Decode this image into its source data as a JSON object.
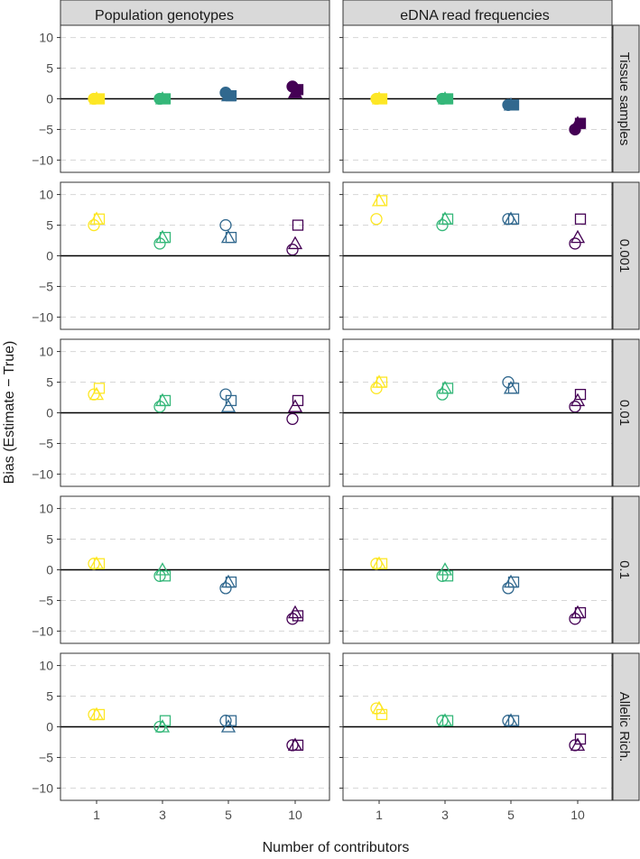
{
  "chart_data": {
    "type": "scatter",
    "xlabel": "Number of contributors",
    "ylabel": "Bias (Estimate − True)",
    "x_categories": [
      "1",
      "3",
      "5",
      "10"
    ],
    "y_ticks": [
      10,
      5,
      0,
      -5,
      -10
    ],
    "ylim": [
      -12,
      12
    ],
    "columns": [
      "Population genotypes",
      "eDNA read frequencies"
    ],
    "rows": [
      "Tissue samples",
      "0.001",
      "0.01",
      "0.1",
      "Allelic Rich."
    ],
    "colors": {
      "1": "#fde725",
      "3": "#35b779",
      "5": "#31688e",
      "10": "#440154"
    },
    "panel_background": "#ffffff",
    "strip_background": "#d9d9d9",
    "panels": [
      {
        "row": "Tissue samples",
        "column": "Population genotypes",
        "filled": true,
        "points": [
          {
            "x": "1",
            "shape": "square",
            "y": 0
          },
          {
            "x": "1",
            "shape": "triangle",
            "y": 0
          },
          {
            "x": "1",
            "shape": "circle",
            "y": 0
          },
          {
            "x": "3",
            "shape": "square",
            "y": 0
          },
          {
            "x": "3",
            "shape": "triangle",
            "y": 0
          },
          {
            "x": "3",
            "shape": "circle",
            "y": 0
          },
          {
            "x": "5",
            "shape": "square",
            "y": 0.5
          },
          {
            "x": "5",
            "shape": "triangle",
            "y": 0.5
          },
          {
            "x": "5",
            "shape": "circle",
            "y": 1
          },
          {
            "x": "10",
            "shape": "square",
            "y": 1.5
          },
          {
            "x": "10",
            "shape": "triangle",
            "y": 1
          },
          {
            "x": "10",
            "shape": "circle",
            "y": 2
          }
        ]
      },
      {
        "row": "Tissue samples",
        "column": "eDNA read frequencies",
        "filled": true,
        "points": [
          {
            "x": "1",
            "shape": "square",
            "y": 0
          },
          {
            "x": "1",
            "shape": "triangle",
            "y": 0
          },
          {
            "x": "1",
            "shape": "circle",
            "y": 0
          },
          {
            "x": "3",
            "shape": "square",
            "y": 0
          },
          {
            "x": "3",
            "shape": "triangle",
            "y": 0
          },
          {
            "x": "3",
            "shape": "circle",
            "y": 0
          },
          {
            "x": "5",
            "shape": "square",
            "y": -1
          },
          {
            "x": "5",
            "shape": "triangle",
            "y": -1
          },
          {
            "x": "5",
            "shape": "circle",
            "y": -1
          },
          {
            "x": "10",
            "shape": "square",
            "y": -4
          },
          {
            "x": "10",
            "shape": "triangle",
            "y": -4
          },
          {
            "x": "10",
            "shape": "circle",
            "y": -5
          }
        ]
      },
      {
        "row": "0.001",
        "column": "Population genotypes",
        "filled": false,
        "points": [
          {
            "x": "1",
            "shape": "square",
            "y": 6
          },
          {
            "x": "1",
            "shape": "triangle",
            "y": 6
          },
          {
            "x": "1",
            "shape": "circle",
            "y": 5
          },
          {
            "x": "3",
            "shape": "square",
            "y": 3
          },
          {
            "x": "3",
            "shape": "triangle",
            "y": 3
          },
          {
            "x": "3",
            "shape": "circle",
            "y": 2
          },
          {
            "x": "5",
            "shape": "square",
            "y": 3
          },
          {
            "x": "5",
            "shape": "triangle",
            "y": 3
          },
          {
            "x": "5",
            "shape": "circle",
            "y": 5
          },
          {
            "x": "10",
            "shape": "square",
            "y": 5
          },
          {
            "x": "10",
            "shape": "triangle",
            "y": 2
          },
          {
            "x": "10",
            "shape": "circle",
            "y": 1
          }
        ]
      },
      {
        "row": "0.001",
        "column": "eDNA read frequencies",
        "filled": false,
        "points": [
          {
            "x": "1",
            "shape": "square",
            "y": 9
          },
          {
            "x": "1",
            "shape": "triangle",
            "y": 9
          },
          {
            "x": "1",
            "shape": "circle",
            "y": 6
          },
          {
            "x": "3",
            "shape": "square",
            "y": 6
          },
          {
            "x": "3",
            "shape": "triangle",
            "y": 6
          },
          {
            "x": "3",
            "shape": "circle",
            "y": 5
          },
          {
            "x": "5",
            "shape": "square",
            "y": 6
          },
          {
            "x": "5",
            "shape": "triangle",
            "y": 6
          },
          {
            "x": "5",
            "shape": "circle",
            "y": 6
          },
          {
            "x": "10",
            "shape": "square",
            "y": 6
          },
          {
            "x": "10",
            "shape": "triangle",
            "y": 3
          },
          {
            "x": "10",
            "shape": "circle",
            "y": 2
          }
        ]
      },
      {
        "row": "0.01",
        "column": "Population genotypes",
        "filled": false,
        "points": [
          {
            "x": "1",
            "shape": "square",
            "y": 4
          },
          {
            "x": "1",
            "shape": "triangle",
            "y": 3
          },
          {
            "x": "1",
            "shape": "circle",
            "y": 3
          },
          {
            "x": "3",
            "shape": "square",
            "y": 2
          },
          {
            "x": "3",
            "shape": "triangle",
            "y": 2
          },
          {
            "x": "3",
            "shape": "circle",
            "y": 1
          },
          {
            "x": "5",
            "shape": "square",
            "y": 2
          },
          {
            "x": "5",
            "shape": "triangle",
            "y": 1
          },
          {
            "x": "5",
            "shape": "circle",
            "y": 3
          },
          {
            "x": "10",
            "shape": "square",
            "y": 2
          },
          {
            "x": "10",
            "shape": "triangle",
            "y": 1
          },
          {
            "x": "10",
            "shape": "circle",
            "y": -1
          }
        ]
      },
      {
        "row": "0.01",
        "column": "eDNA read frequencies",
        "filled": false,
        "points": [
          {
            "x": "1",
            "shape": "square",
            "y": 5
          },
          {
            "x": "1",
            "shape": "triangle",
            "y": 5
          },
          {
            "x": "1",
            "shape": "circle",
            "y": 4
          },
          {
            "x": "3",
            "shape": "square",
            "y": 4
          },
          {
            "x": "3",
            "shape": "triangle",
            "y": 4
          },
          {
            "x": "3",
            "shape": "circle",
            "y": 3
          },
          {
            "x": "5",
            "shape": "square",
            "y": 4
          },
          {
            "x": "5",
            "shape": "triangle",
            "y": 4
          },
          {
            "x": "5",
            "shape": "circle",
            "y": 5
          },
          {
            "x": "10",
            "shape": "square",
            "y": 3
          },
          {
            "x": "10",
            "shape": "triangle",
            "y": 2
          },
          {
            "x": "10",
            "shape": "circle",
            "y": 1
          }
        ]
      },
      {
        "row": "0.1",
        "column": "Population genotypes",
        "filled": false,
        "points": [
          {
            "x": "1",
            "shape": "square",
            "y": 1
          },
          {
            "x": "1",
            "shape": "triangle",
            "y": 1
          },
          {
            "x": "1",
            "shape": "circle",
            "y": 1
          },
          {
            "x": "3",
            "shape": "square",
            "y": -1
          },
          {
            "x": "3",
            "shape": "triangle",
            "y": 0
          },
          {
            "x": "3",
            "shape": "circle",
            "y": -1
          },
          {
            "x": "5",
            "shape": "square",
            "y": -2
          },
          {
            "x": "5",
            "shape": "triangle",
            "y": -2
          },
          {
            "x": "5",
            "shape": "circle",
            "y": -3
          },
          {
            "x": "10",
            "shape": "square",
            "y": -7.5
          },
          {
            "x": "10",
            "shape": "triangle",
            "y": -7
          },
          {
            "x": "10",
            "shape": "circle",
            "y": -8
          }
        ]
      },
      {
        "row": "0.1",
        "column": "eDNA read frequencies",
        "filled": false,
        "points": [
          {
            "x": "1",
            "shape": "square",
            "y": 1
          },
          {
            "x": "1",
            "shape": "triangle",
            "y": 1
          },
          {
            "x": "1",
            "shape": "circle",
            "y": 1
          },
          {
            "x": "3",
            "shape": "square",
            "y": -1
          },
          {
            "x": "3",
            "shape": "triangle",
            "y": 0
          },
          {
            "x": "3",
            "shape": "circle",
            "y": -1
          },
          {
            "x": "5",
            "shape": "square",
            "y": -2
          },
          {
            "x": "5",
            "shape": "triangle",
            "y": -2
          },
          {
            "x": "5",
            "shape": "circle",
            "y": -3
          },
          {
            "x": "10",
            "shape": "square",
            "y": -7
          },
          {
            "x": "10",
            "shape": "triangle",
            "y": -7
          },
          {
            "x": "10",
            "shape": "circle",
            "y": -8
          }
        ]
      },
      {
        "row": "Allelic Rich.",
        "column": "Population genotypes",
        "filled": false,
        "points": [
          {
            "x": "1",
            "shape": "square",
            "y": 2
          },
          {
            "x": "1",
            "shape": "triangle",
            "y": 2
          },
          {
            "x": "1",
            "shape": "circle",
            "y": 2
          },
          {
            "x": "3",
            "shape": "square",
            "y": 1
          },
          {
            "x": "3",
            "shape": "triangle",
            "y": 0
          },
          {
            "x": "3",
            "shape": "circle",
            "y": 0
          },
          {
            "x": "5",
            "shape": "square",
            "y": 1
          },
          {
            "x": "5",
            "shape": "triangle",
            "y": 0
          },
          {
            "x": "5",
            "shape": "circle",
            "y": 1
          },
          {
            "x": "10",
            "shape": "square",
            "y": -3
          },
          {
            "x": "10",
            "shape": "triangle",
            "y": -3
          },
          {
            "x": "10",
            "shape": "circle",
            "y": -3
          }
        ]
      },
      {
        "row": "Allelic Rich.",
        "column": "eDNA read frequencies",
        "filled": false,
        "points": [
          {
            "x": "1",
            "shape": "square",
            "y": 2
          },
          {
            "x": "1",
            "shape": "triangle",
            "y": 3
          },
          {
            "x": "1",
            "shape": "circle",
            "y": 3
          },
          {
            "x": "3",
            "shape": "square",
            "y": 1
          },
          {
            "x": "3",
            "shape": "triangle",
            "y": 1
          },
          {
            "x": "3",
            "shape": "circle",
            "y": 1
          },
          {
            "x": "5",
            "shape": "square",
            "y": 1
          },
          {
            "x": "5",
            "shape": "triangle",
            "y": 1
          },
          {
            "x": "5",
            "shape": "circle",
            "y": 1
          },
          {
            "x": "10",
            "shape": "square",
            "y": -2
          },
          {
            "x": "10",
            "shape": "triangle",
            "y": -3
          },
          {
            "x": "10",
            "shape": "circle",
            "y": -3
          }
        ]
      }
    ]
  }
}
